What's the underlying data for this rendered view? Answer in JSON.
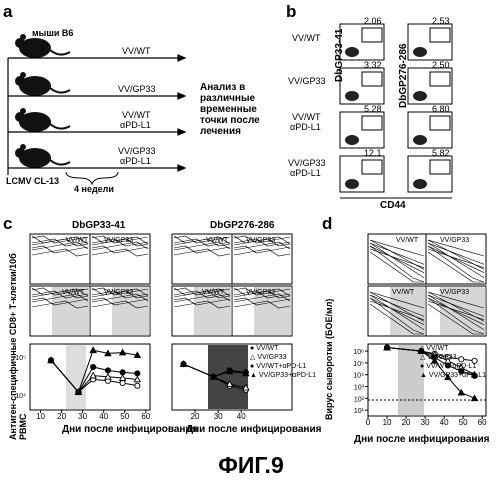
{
  "panels": {
    "a": "a",
    "b": "b",
    "c": "c",
    "d": "d"
  },
  "panel_a": {
    "mouse_strain": "мыши B6",
    "groups": [
      {
        "line1": "VV/WT",
        "line2": ""
      },
      {
        "line1": "VV/GP33",
        "line2": ""
      },
      {
        "line1": "VV/WT",
        "line2": "αPD-L1"
      },
      {
        "line1": "VV/GP33",
        "line2": "αPD-L1"
      }
    ],
    "analysis_text": [
      "Анализ в",
      "различные",
      "временные",
      "точки после",
      "лечения"
    ],
    "infection": "LCMV CL-13",
    "duration": "4 недели"
  },
  "panel_b": {
    "row_labels": [
      {
        "line1": "VV/WT",
        "line2": ""
      },
      {
        "line1": "VV/GP33",
        "line2": ""
      },
      {
        "line1": "VV/WT",
        "line2": "αPD-L1"
      },
      {
        "line1": "VV/GP33",
        "line2": "αPD-L1"
      }
    ],
    "col1_label": "DbGP33-41",
    "col2_label": "DbGP276-286",
    "col1_values": [
      "2.06",
      "3.32",
      "5.28",
      "12.1"
    ],
    "col2_values": [
      "2.53",
      "2.50",
      "6.80",
      "5.82"
    ],
    "xaxis": "CD44"
  },
  "panel_c": {
    "title_left": "DbGP33-41",
    "title_right": "DbGP276-286",
    "ylabel": "Антиген-специфичные CD8+ Т-клетки/10б PBMC",
    "xlabel": "Дни после инфицирования",
    "small_labels": {
      "wt": "VV/WT",
      "gp33": "VV/GP33",
      "wt_pd": "VV/WT",
      "gp33_pd": "VV/GP33",
      "pd": "αPD-L1"
    },
    "xticks": [
      "10",
      "20",
      "30",
      "40",
      "50",
      "60"
    ],
    "xticks_right": [
      "20",
      "30",
      "40"
    ],
    "yticks": [
      "10⁵",
      "10⁴"
    ],
    "legend": [
      "VV/WT",
      "VV/GP33",
      "VV/WT+αPD-L1",
      "VV/GP33+αPD-L1"
    ]
  },
  "panel_d": {
    "ylabel": "Вирус сыворотки (БОЕ/мл)",
    "xlabel": "Дни после инфицирования",
    "xticks": [
      "0",
      "10",
      "20",
      "30",
      "40",
      "50",
      "60"
    ],
    "yticks": [
      "10⁶",
      "10⁵",
      "10⁴",
      "10³",
      "10²",
      "10¹"
    ],
    "legend": [
      "VV/WT",
      "VV/GP33",
      "VV/WT+αPD-L1",
      "VV/GP33+αPD-L1"
    ],
    "small_labels": {
      "wt": "VV/WT",
      "gp33": "VV/GP33",
      "wt_pd": "VV/WT",
      "gp33_pd": "VV/GP33",
      "pd": "αPD-L1"
    }
  },
  "chart_data": [
    {
      "type": "line",
      "panel": "c-left",
      "title": "DbGP33-41",
      "x": [
        15,
        28,
        35,
        42,
        49,
        56
      ],
      "series": [
        {
          "name": "VV/WT",
          "values": [
            19000,
            4500,
            8000,
            7500,
            6800,
            6000
          ]
        },
        {
          "name": "VV/GP33",
          "values": [
            19000,
            4500,
            9500,
            9000,
            8500,
            8000
          ]
        },
        {
          "name": "VV/WT+αPD-L1",
          "values": [
            19000,
            4500,
            14000,
            12000,
            11000,
            10500
          ]
        },
        {
          "name": "VV/GP33+αPD-L1",
          "values": [
            19000,
            4500,
            30000,
            26000,
            27000,
            24000
          ]
        }
      ],
      "xlabel": "Дни после инфицирования"
    },
    {
      "type": "line",
      "panel": "c-right",
      "title": "DbGP276-286",
      "x": [
        15,
        28,
        35,
        42
      ],
      "series": [
        {
          "name": "VV/WT",
          "values": [
            16000,
            9000,
            6000,
            5000
          ]
        },
        {
          "name": "VV/GP33",
          "values": [
            16000,
            9000,
            6500,
            5500
          ]
        },
        {
          "name": "VV/WT+αPD-L1",
          "values": [
            16000,
            9000,
            12000,
            11000
          ]
        },
        {
          "name": "VV/GP33+αPD-L1",
          "values": [
            16000,
            9000,
            11500,
            10500
          ]
        }
      ]
    },
    {
      "type": "line",
      "panel": "d",
      "x": [
        10,
        28,
        35,
        42,
        49,
        56
      ],
      "series": [
        {
          "name": "VV/WT",
          "values": [
            2000000,
            1000000,
            600000,
            300000,
            200000,
            150000
          ]
        },
        {
          "name": "VV/GP33",
          "values": [
            2000000,
            1000000,
            500000,
            150000,
            40000,
            10000
          ]
        },
        {
          "name": "VV/WT+αPD-L1",
          "values": [
            2000000,
            1000000,
            300000,
            60000,
            20000,
            8000
          ]
        },
        {
          "name": "VV/GP33+αPD-L1",
          "values": [
            2000000,
            1000000,
            150000,
            6000,
            300,
            100
          ]
        }
      ],
      "ylabel": "Вирус сыворотки (БОЕ/мл)",
      "xlabel": "Дни после инфицирования"
    }
  ],
  "figure_caption": "ФИГ.9"
}
